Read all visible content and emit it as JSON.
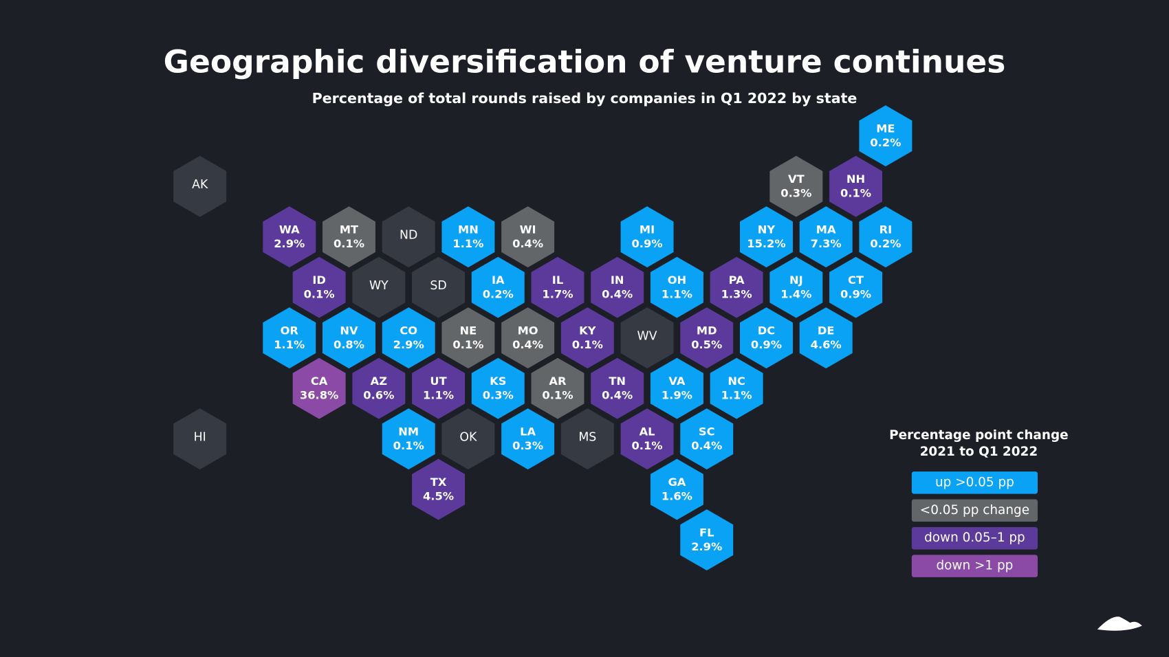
{
  "header": {
    "title": "Geographic diversification of venture continues",
    "subtitle": "Percentage of total rounds raised by companies in Q1 2022 by state"
  },
  "states": [
    {
      "abbr": "AK",
      "color": "#363a42"
    },
    {
      "abbr": "WA",
      "value": "2.9%",
      "color": "#5b3a9c"
    },
    {
      "abbr": "MT",
      "value": "0.1%",
      "color": "#636669"
    },
    {
      "abbr": "ND",
      "color": "#363a42"
    },
    {
      "abbr": "MN",
      "value": "1.1%",
      "color": "#0aa2f5"
    },
    {
      "abbr": "WI",
      "value": "0.4%",
      "color": "#636669"
    },
    {
      "abbr": "MI",
      "value": "0.9%",
      "color": "#0aa2f5"
    },
    {
      "abbr": "NY",
      "value": "15.2%",
      "color": "#0aa2f5"
    },
    {
      "abbr": "MA",
      "value": "7.3%",
      "color": "#0aa2f5"
    },
    {
      "abbr": "RI",
      "value": "0.2%",
      "color": "#0aa2f5"
    },
    {
      "abbr": "ID",
      "value": "0.1%",
      "color": "#5b3a9c"
    },
    {
      "abbr": "WY",
      "color": "#363a42"
    },
    {
      "abbr": "SD",
      "color": "#363a42"
    },
    {
      "abbr": "IA",
      "value": "0.2%",
      "color": "#0aa2f5"
    },
    {
      "abbr": "IL",
      "value": "1.7%",
      "color": "#5b3a9c"
    },
    {
      "abbr": "IN",
      "value": "0.4%",
      "color": "#5b3a9c"
    },
    {
      "abbr": "OH",
      "value": "1.1%",
      "color": "#0aa2f5"
    },
    {
      "abbr": "PA",
      "value": "1.3%",
      "color": "#5b3a9c"
    },
    {
      "abbr": "NJ",
      "value": "1.4%",
      "color": "#0aa2f5"
    },
    {
      "abbr": "CT",
      "value": "0.9%",
      "color": "#0aa2f5"
    },
    {
      "abbr": "OR",
      "value": "1.1%",
      "color": "#0aa2f5"
    },
    {
      "abbr": "NV",
      "value": "0.8%",
      "color": "#0aa2f5"
    },
    {
      "abbr": "CO",
      "value": "2.9%",
      "color": "#0aa2f5"
    },
    {
      "abbr": "NE",
      "value": "0.1%",
      "color": "#636669"
    },
    {
      "abbr": "MO",
      "value": "0.4%",
      "color": "#636669"
    },
    {
      "abbr": "KY",
      "value": "0.1%",
      "color": "#5b3a9c"
    },
    {
      "abbr": "WV",
      "color": "#363a42"
    },
    {
      "abbr": "MD",
      "value": "0.5%",
      "color": "#5b3a9c"
    },
    {
      "abbr": "DC",
      "value": "0.9%",
      "color": "#0aa2f5"
    },
    {
      "abbr": "DE",
      "value": "4.6%",
      "color": "#0aa2f5"
    },
    {
      "abbr": "CA",
      "value": "36.8%",
      "color": "#8b4aa6"
    },
    {
      "abbr": "AZ",
      "value": "0.6%",
      "color": "#5b3a9c"
    },
    {
      "abbr": "UT",
      "value": "1.1%",
      "color": "#5b3a9c"
    },
    {
      "abbr": "KS",
      "value": "0.3%",
      "color": "#0aa2f5"
    },
    {
      "abbr": "AR",
      "value": "0.1%",
      "color": "#636669"
    },
    {
      "abbr": "TN",
      "value": "0.4%",
      "color": "#5b3a9c"
    },
    {
      "abbr": "VA",
      "value": "1.9%",
      "color": "#0aa2f5"
    },
    {
      "abbr": "NC",
      "value": "1.1%",
      "color": "#0aa2f5"
    },
    {
      "abbr": "NM",
      "value": "0.1%",
      "color": "#0aa2f5"
    },
    {
      "abbr": "OK",
      "color": "#363a42"
    },
    {
      "abbr": "LA",
      "value": "0.3%",
      "color": "#0aa2f5"
    },
    {
      "abbr": "MS",
      "color": "#363a42"
    },
    {
      "abbr": "AL",
      "value": "0.1%",
      "color": "#5b3a9c"
    },
    {
      "abbr": "SC",
      "value": "0.4%",
      "color": "#0aa2f5"
    },
    {
      "abbr": "TX",
      "value": "4.5%",
      "color": "#5b3a9c"
    },
    {
      "abbr": "GA",
      "value": "1.6%",
      "color": "#0aa2f5"
    },
    {
      "abbr": "FL",
      "value": "2.9%",
      "color": "#0aa2f5"
    },
    {
      "abbr": "VT",
      "value": "0.3%",
      "color": "#636669"
    },
    {
      "abbr": "NH",
      "value": "0.1%",
      "color": "#5b3a9c"
    },
    {
      "abbr": "ME",
      "value": "0.2%",
      "color": "#0aa2f5"
    },
    {
      "abbr": "HI",
      "color": "#363a42"
    }
  ],
  "legend": {
    "title": [
      "Percentage point change",
      "2021 to Q1 2022"
    ],
    "items": [
      {
        "label": "up >0.05 pp",
        "color": "#0aa2f5"
      },
      {
        "label": "<0.05 pp change",
        "color": "#636669"
      },
      {
        "label": "down 0.05–1 pp",
        "color": "#5b3a9c"
      },
      {
        "label": "down >1 pp",
        "color": "#8b4aa6"
      }
    ]
  }
}
